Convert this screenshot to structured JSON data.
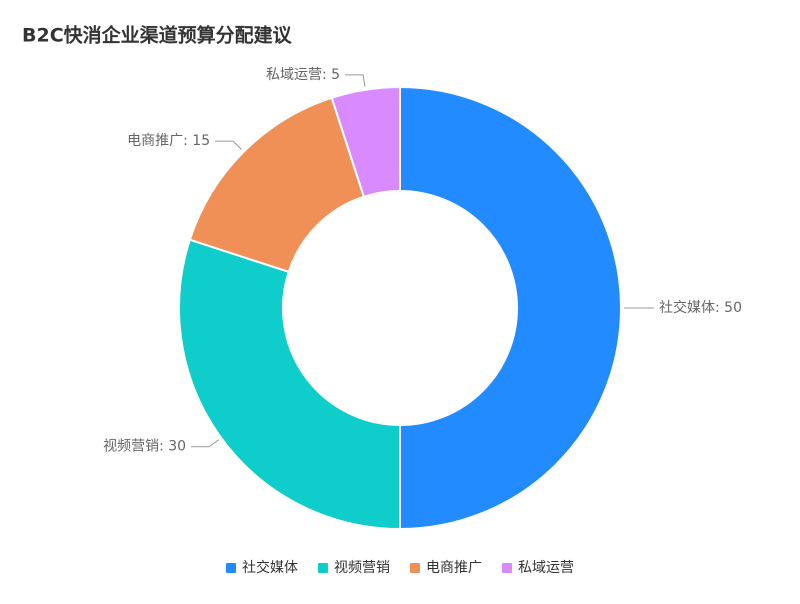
{
  "chart_data": {
    "type": "pie",
    "title": "B2C快消企业渠道预算分配建议",
    "categories": [
      "社交媒体",
      "视频营销",
      "电商推广",
      "私域运营"
    ],
    "values": [
      50,
      30,
      15,
      5
    ],
    "value_labels": [
      "社交媒体: 50",
      "视频营销: 30",
      "电商推广: 15",
      "私域运营: 5"
    ],
    "colors": [
      "#228bff",
      "#0fcdca",
      "#f08f56",
      "#d98aff"
    ],
    "legend": "bottom"
  }
}
